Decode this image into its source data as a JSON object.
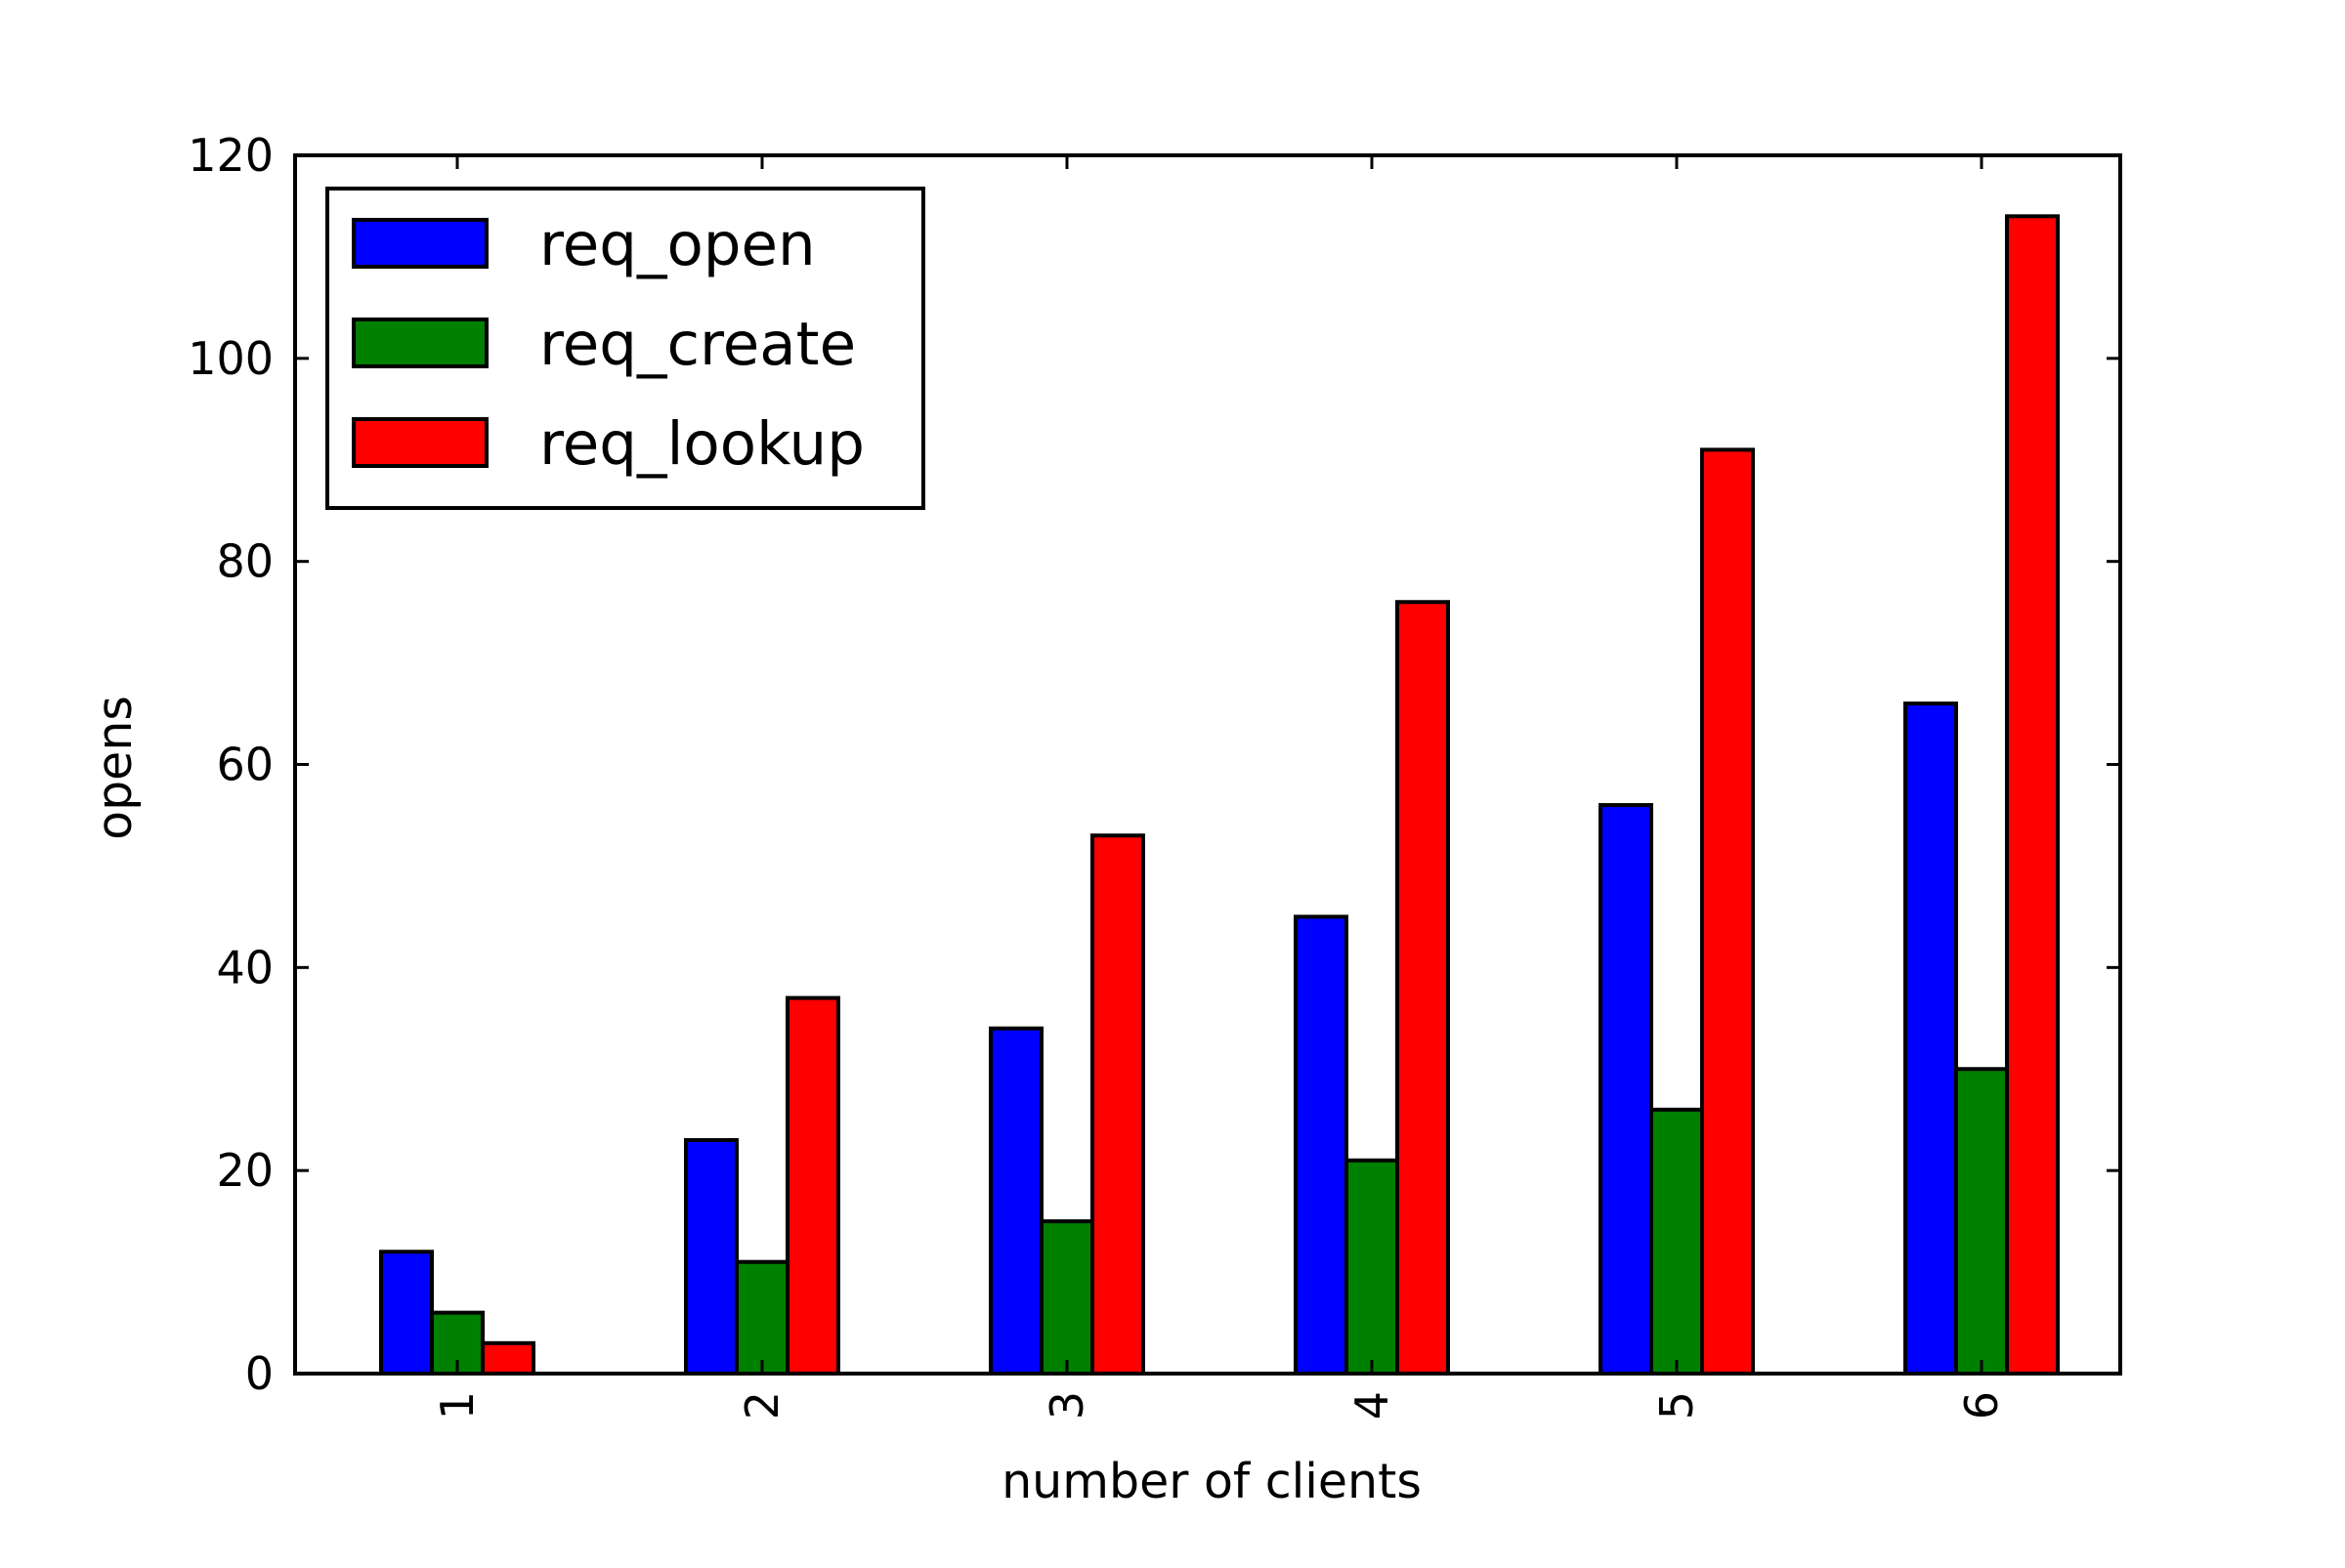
{
  "chart_data": {
    "type": "bar",
    "title": "",
    "xlabel": "number of clients",
    "ylabel": "opens",
    "categories": [
      "1",
      "2",
      "3",
      "4",
      "5",
      "6"
    ],
    "series": [
      {
        "name": "req_open",
        "color": "#0000ff",
        "values": [
          12,
          23,
          34,
          45,
          56,
          66
        ]
      },
      {
        "name": "req_create",
        "color": "#008000",
        "values": [
          6,
          11,
          15,
          21,
          26,
          30
        ]
      },
      {
        "name": "req_lookup",
        "color": "#ff0000",
        "values": [
          3,
          37,
          53,
          76,
          91,
          114
        ]
      }
    ],
    "ylim": [
      0,
      120
    ],
    "yticks": [
      0,
      20,
      40,
      60,
      80,
      100,
      120
    ],
    "ytick_labels": [
      "0",
      "20",
      "40",
      "60",
      "80",
      "100",
      "120"
    ],
    "xtick_rotation": "vertical",
    "grid": false,
    "legend_position": "upper-left"
  }
}
